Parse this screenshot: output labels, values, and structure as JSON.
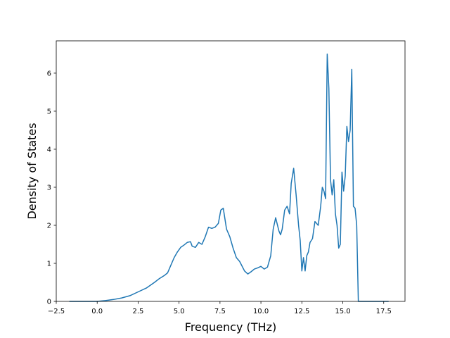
{
  "chart_data": {
    "type": "line",
    "xlabel": "Frequency (THz)",
    "ylabel": "Density of States",
    "xlim": [
      -2.5,
      18.8
    ],
    "ylim": [
      0,
      6.85
    ],
    "x_ticks": [
      -2.5,
      0.0,
      2.5,
      5.0,
      7.5,
      10.0,
      12.5,
      15.0,
      17.5
    ],
    "x_tick_labels": [
      "−2.5",
      "0.0",
      "2.5",
      "5.0",
      "7.5",
      "10.0",
      "12.5",
      "15.0",
      "17.5"
    ],
    "y_ticks": [
      0,
      1,
      2,
      3,
      4,
      5,
      6
    ],
    "y_tick_labels": [
      "0",
      "1",
      "2",
      "3",
      "4",
      "5",
      "6"
    ],
    "grid": false,
    "series": [
      {
        "color": "#1f77b4",
        "x": [
          -1.7,
          0.0,
          0.5,
          1.0,
          1.5,
          2.0,
          2.5,
          3.0,
          3.5,
          3.8,
          4.1,
          4.3,
          4.5,
          4.7,
          4.9,
          5.1,
          5.3,
          5.5,
          5.7,
          5.8,
          6.0,
          6.2,
          6.4,
          6.6,
          6.8,
          7.0,
          7.2,
          7.4,
          7.55,
          7.7,
          7.9,
          8.1,
          8.3,
          8.5,
          8.7,
          9.0,
          9.2,
          9.4,
          9.6,
          9.8,
          10.0,
          10.2,
          10.4,
          10.6,
          10.75,
          10.9,
          11.1,
          11.2,
          11.3,
          11.45,
          11.6,
          11.75,
          11.85,
          12.0,
          12.15,
          12.3,
          12.4,
          12.5,
          12.6,
          12.7,
          12.8,
          12.9,
          13.0,
          13.15,
          13.3,
          13.4,
          13.5,
          13.65,
          13.75,
          13.85,
          13.95,
          14.05,
          14.15,
          14.25,
          14.35,
          14.45,
          14.55,
          14.65,
          14.75,
          14.85,
          14.95,
          15.05,
          15.15,
          15.25,
          15.35,
          15.45,
          15.55,
          15.65,
          15.75,
          15.85,
          15.95,
          16.05,
          16.15,
          16.3,
          17.8
        ],
        "y": [
          0.0,
          0.0,
          0.02,
          0.05,
          0.09,
          0.15,
          0.25,
          0.35,
          0.5,
          0.6,
          0.68,
          0.75,
          0.95,
          1.15,
          1.3,
          1.42,
          1.48,
          1.55,
          1.57,
          1.45,
          1.42,
          1.55,
          1.5,
          1.7,
          1.95,
          1.92,
          1.95,
          2.05,
          2.4,
          2.45,
          1.9,
          1.7,
          1.4,
          1.15,
          1.05,
          0.8,
          0.72,
          0.78,
          0.85,
          0.88,
          0.92,
          0.85,
          0.9,
          1.2,
          1.9,
          2.2,
          1.85,
          1.75,
          1.9,
          2.4,
          2.5,
          2.3,
          3.1,
          3.5,
          2.8,
          2.0,
          1.6,
          0.8,
          1.15,
          0.8,
          1.2,
          1.3,
          1.55,
          1.65,
          2.1,
          2.05,
          2.0,
          2.5,
          3.0,
          2.9,
          2.7,
          6.5,
          5.6,
          3.2,
          2.8,
          3.2,
          2.3,
          2.0,
          1.4,
          1.5,
          3.4,
          2.9,
          3.3,
          4.6,
          4.2,
          4.5,
          6.1,
          2.5,
          2.45,
          2.0,
          0.0,
          0.0,
          0.0,
          0.0,
          0.0
        ]
      }
    ]
  }
}
